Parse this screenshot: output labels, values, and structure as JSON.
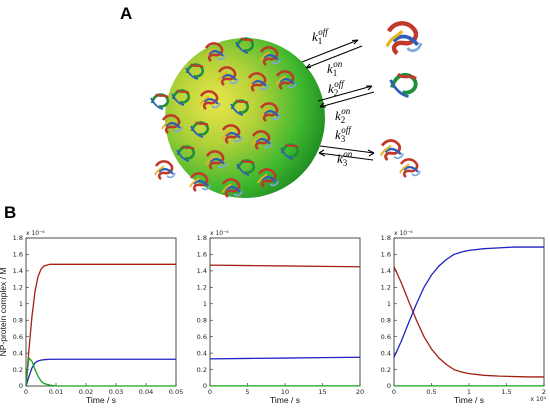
{
  "panels": {
    "a": "A",
    "b": "B"
  },
  "rates": [
    {
      "k": "k",
      "off": "off",
      "on": "on",
      "sub": "1"
    },
    {
      "k": "k",
      "off": "off",
      "on": "on",
      "sub": "2"
    },
    {
      "k": "k",
      "off": "off",
      "on": "on",
      "sub": "3"
    }
  ],
  "colors": {
    "red": "#a31f12",
    "blue": "#1f22c4",
    "green": "#16a316",
    "sphere": "#3fb82e"
  },
  "icons": [
    "nanoparticle-sphere",
    "protein-ribbon"
  ],
  "chart_data": [
    {
      "type": "line",
      "ylabel": "NP-protein complex / M",
      "xlabel": "Time / s",
      "xlim": [
        0,
        0.05
      ],
      "ylim": [
        0,
        1.8
      ],
      "y_multiplier": "x 10⁻⁶",
      "xticks": [
        "0",
        "0.01",
        "0.02",
        "0.03",
        "0.04",
        "0.05"
      ],
      "yticks": [
        "0",
        "0.2",
        "0.4",
        "0.6",
        "0.8",
        "1",
        "1.2",
        "1.4",
        "1.6",
        "1.8"
      ],
      "x_multiplier": "",
      "series": [
        {
          "color": "#a31f12",
          "x": [
            0,
            0.001,
            0.002,
            0.003,
            0.004,
            0.005,
            0.006,
            0.008,
            0.01,
            0.02,
            0.03,
            0.04,
            0.05
          ],
          "y": [
            0,
            0.45,
            0.85,
            1.15,
            1.33,
            1.42,
            1.46,
            1.48,
            1.48,
            1.48,
            1.48,
            1.48,
            1.48
          ]
        },
        {
          "color": "#1f22c4",
          "x": [
            0,
            0.001,
            0.002,
            0.003,
            0.004,
            0.005,
            0.006,
            0.008,
            0.01,
            0.02,
            0.03,
            0.04,
            0.05
          ],
          "y": [
            0,
            0.12,
            0.22,
            0.28,
            0.305,
            0.315,
            0.32,
            0.325,
            0.325,
            0.325,
            0.325,
            0.325,
            0.325
          ]
        },
        {
          "color": "#16a316",
          "x": [
            0,
            0.0005,
            0.001,
            0.002,
            0.003,
            0.004,
            0.005,
            0.006,
            0.008,
            0.01,
            0.02,
            0.05
          ],
          "y": [
            0,
            0.2,
            0.34,
            0.3,
            0.2,
            0.12,
            0.06,
            0.03,
            0.01,
            0.0,
            0.0,
            0.0
          ]
        }
      ]
    },
    {
      "type": "line",
      "ylabel": "",
      "xlabel": "Time / s",
      "xlim": [
        0,
        20
      ],
      "ylim": [
        0,
        1.8
      ],
      "y_multiplier": "x 10⁻⁶",
      "xticks": [
        "0",
        "5",
        "10",
        "15",
        "20"
      ],
      "yticks": [
        "0",
        "0.2",
        "0.4",
        "0.6",
        "0.8",
        "1",
        "1.2",
        "1.4",
        "1.6",
        "1.8"
      ],
      "x_multiplier": "",
      "series": [
        {
          "color": "#a31f12",
          "x": [
            0,
            5,
            10,
            15,
            20
          ],
          "y": [
            1.47,
            1.465,
            1.46,
            1.455,
            1.45
          ]
        },
        {
          "color": "#1f22c4",
          "x": [
            0,
            5,
            10,
            15,
            20
          ],
          "y": [
            0.33,
            0.335,
            0.34,
            0.345,
            0.35
          ]
        },
        {
          "color": "#16a316",
          "x": [
            0,
            20
          ],
          "y": [
            0.002,
            0.002
          ]
        }
      ]
    },
    {
      "type": "line",
      "ylabel": "",
      "xlabel": "Time / s",
      "xlim": [
        0,
        2
      ],
      "ylim": [
        0,
        1.8
      ],
      "y_multiplier": "x 10⁻⁶",
      "xticks": [
        "0",
        "0.5",
        "1",
        "1.5",
        "2"
      ],
      "yticks": [
        "0",
        "0.2",
        "0.4",
        "0.6",
        "0.8",
        "1",
        "1.2",
        "1.4",
        "1.6",
        "1.8"
      ],
      "x_multiplier": "x 10⁴",
      "series": [
        {
          "color": "#a31f12",
          "x": [
            0,
            0.1,
            0.2,
            0.3,
            0.4,
            0.5,
            0.6,
            0.7,
            0.8,
            0.9,
            1.0,
            1.2,
            1.4,
            1.6,
            1.8,
            2.0
          ],
          "y": [
            1.45,
            1.25,
            1.02,
            0.8,
            0.6,
            0.45,
            0.34,
            0.26,
            0.2,
            0.17,
            0.15,
            0.13,
            0.12,
            0.115,
            0.11,
            0.11
          ]
        },
        {
          "color": "#1f22c4",
          "x": [
            0,
            0.1,
            0.2,
            0.3,
            0.4,
            0.5,
            0.6,
            0.7,
            0.8,
            0.9,
            1.0,
            1.2,
            1.4,
            1.6,
            1.8,
            2.0
          ],
          "y": [
            0.35,
            0.55,
            0.78,
            1.0,
            1.2,
            1.35,
            1.46,
            1.54,
            1.6,
            1.63,
            1.65,
            1.67,
            1.68,
            1.69,
            1.69,
            1.69
          ]
        },
        {
          "color": "#16a316",
          "x": [
            0,
            2
          ],
          "y": [
            0.002,
            0.002
          ]
        }
      ]
    }
  ]
}
